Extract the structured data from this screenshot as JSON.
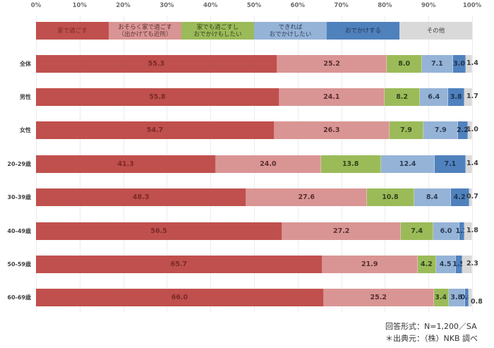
{
  "chart_data": {
    "type": "bar",
    "orientation": "horizontal",
    "stacked": "100%",
    "title": "",
    "xlabel": "",
    "ylabel": "",
    "xlim": [
      0,
      100
    ],
    "x_ticks": [
      "0%",
      "10%",
      "20%",
      "30%",
      "40%",
      "50%",
      "60%",
      "70%",
      "80%",
      "90%",
      "100%"
    ],
    "grid": true,
    "legend_position": "top",
    "categories": [
      "全体",
      "男性",
      "女性",
      "20-29歳",
      "30-39歳",
      "40-49歳",
      "50-59歳",
      "60-69歳"
    ],
    "series": [
      {
        "name": "家で過ごす",
        "color": "#C0504D",
        "values": [
          55.3,
          55.8,
          54.7,
          41.3,
          48.3,
          56.5,
          65.7,
          66.0
        ]
      },
      {
        "name": "おそらく家で過ごす（出かけても近所）",
        "color": "#D99594",
        "values": [
          25.2,
          24.1,
          26.3,
          24.0,
          27.6,
          27.2,
          21.9,
          25.2
        ]
      },
      {
        "name": "家でも過ごすし おでかけもしたい",
        "color": "#9BBB59",
        "values": [
          8.0,
          8.2,
          7.9,
          13.8,
          10.8,
          7.4,
          4.2,
          3.4
        ]
      },
      {
        "name": "できれば おでかけしたい",
        "color": "#95B3D7",
        "values": [
          7.1,
          6.4,
          7.9,
          12.4,
          8.4,
          6.0,
          4.5,
          3.8
        ]
      },
      {
        "name": "おでかけする",
        "color": "#4F81BD",
        "values": [
          3.0,
          3.8,
          2.2,
          7.1,
          4.2,
          1.1,
          1.5,
          0.8
        ]
      },
      {
        "name": "その他",
        "color": "#D9D9D9",
        "values": [
          1.4,
          1.7,
          1.0,
          1.4,
          0.7,
          1.8,
          2.3,
          0.8
        ]
      }
    ],
    "annotations": [
      "回答形式：N=1,200／SA",
      "＊出典元：（株）NKB 調べ"
    ]
  },
  "legend": {
    "items": [
      {
        "label": "家で過ごす",
        "color": "#C0504D",
        "text_color": "#7a2a28"
      },
      {
        "label": "おそらく家で過ごす\n（出かけても近所）",
        "color": "#D99594",
        "text_color": "#5a3030"
      },
      {
        "label": "家でも過ごすし\nおでかけもしたい",
        "color": "#9BBB59",
        "text_color": "#34421c"
      },
      {
        "label": "できれば\nおでかけしたい",
        "color": "#95B3D7",
        "text_color": "#2d3d55"
      },
      {
        "label": "おでかけする",
        "color": "#4F81BD",
        "text_color": "#1f3452"
      },
      {
        "label": "その他",
        "color": "#D9D9D9",
        "text_color": "#404040"
      }
    ]
  },
  "notes": {
    "response_format": "回答形式：N=1,200／SA",
    "source": "＊出典元：（株）NKB 調べ"
  }
}
